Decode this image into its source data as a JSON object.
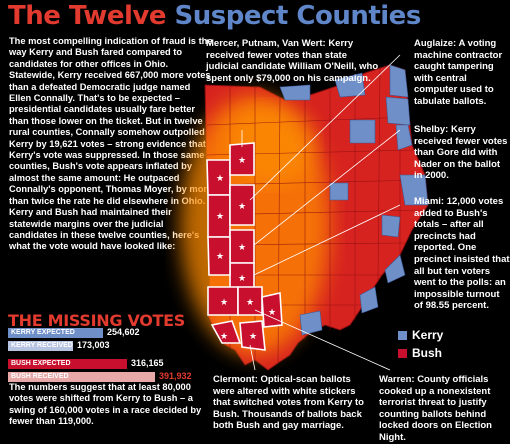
{
  "title": {
    "part1": "The Twelve",
    "part2": "Suspect Counties"
  },
  "intro": "The most compelling indication of fraud is the way Kerry and Bush fared compared to candidates for other offices in Ohio. Statewide, Kerry received 667,000 more votes than a defeated Democratic judge named Ellen Connally. That's to be expected – presidential candidates usually fare better than those lower on the ticket. But in twelve rural counties, Connally somehow outpolled Kerry by 19,621 votes – strong evidence that Kerry's vote was suppressed. In those same counties, Bush's vote appears inflated by almost the same amount: He outpaced Connally's opponent, Thomas Moyer, by more than twice the rate he did elsewhere in Ohio. If Kerry and Bush had maintained their statewide margins over the judicial candidates in these twelve counties, here's what the vote would have looked like:",
  "callouts": {
    "mercer": {
      "head": "Mercer, Putnam, Van Wert:",
      "body": "Kerry received fewer votes than state judicial candidate William O'Neill, who spent only $79,000 on his campaign."
    },
    "auglaize": {
      "head": "Auglaize:",
      "body": "A voting machine contractor caught tampering with central computer used to tabulate ballots."
    },
    "shelby": {
      "head": "Shelby:",
      "body": "Kerry received fewer votes than Gore did with Nader on the ballot in 2000."
    },
    "miami": {
      "head": "Miami:",
      "body": "12,000 votes added to Bush's totals – after all precincts had reported. One precinct insisted that all but ten voters went to the polls: an impossible turnout of 98.55 percent."
    },
    "clermont": {
      "head": "Clermont:",
      "body": "Optical-scan ballots were altered with white stickers that switched votes from Kerry to Bush. Thousands of ballots back both Bush and gay marriage."
    },
    "warren": {
      "head": "Warren:",
      "body": "County officials cooked up a nonexistent terrorist threat to justify counting ballots behind locked doors on Election Night."
    }
  },
  "missing_votes": {
    "title": "THE MISSING VOTES",
    "max": 400000,
    "rows": [
      {
        "label": "KERRY EXPECTED",
        "value": 254602,
        "value_text": "254,602",
        "color": "#6f8fc8",
        "text_color": "#ffffff"
      },
      {
        "label": "KERRY RECEIVED",
        "value": 173003,
        "value_text": "173,003",
        "color": "#b6c4e2",
        "text_color": "#ffffff"
      },
      {
        "label": "BUSH EXPECTED",
        "value": 316165,
        "value_text": "316,165",
        "color": "#c8102e",
        "text_color": "#ffffff"
      },
      {
        "label": "BUSH RECEIVED",
        "value": 391932,
        "value_text": "391,932",
        "color": "#e8a8a8",
        "text_color": "#e23a2e"
      }
    ]
  },
  "outro": "The numbers suggest that at least 80,000 votes were shifted from Kerry to Bush – a swing of 160,000 votes in a race decided by fewer than 119,000.",
  "legend": [
    {
      "label": "Kerry",
      "color": "#6f8fc8"
    },
    {
      "label": "Bush",
      "color": "#c8102e"
    }
  ],
  "colors": {
    "bush": "#d7231f",
    "kerry": "#6f8fc8",
    "suspect": "#c8102e",
    "glow": "#ff7a00",
    "title_red": "#e23a2e",
    "title_blue": "#5f86c8"
  },
  "map": {
    "star_icon": "star-icon"
  }
}
